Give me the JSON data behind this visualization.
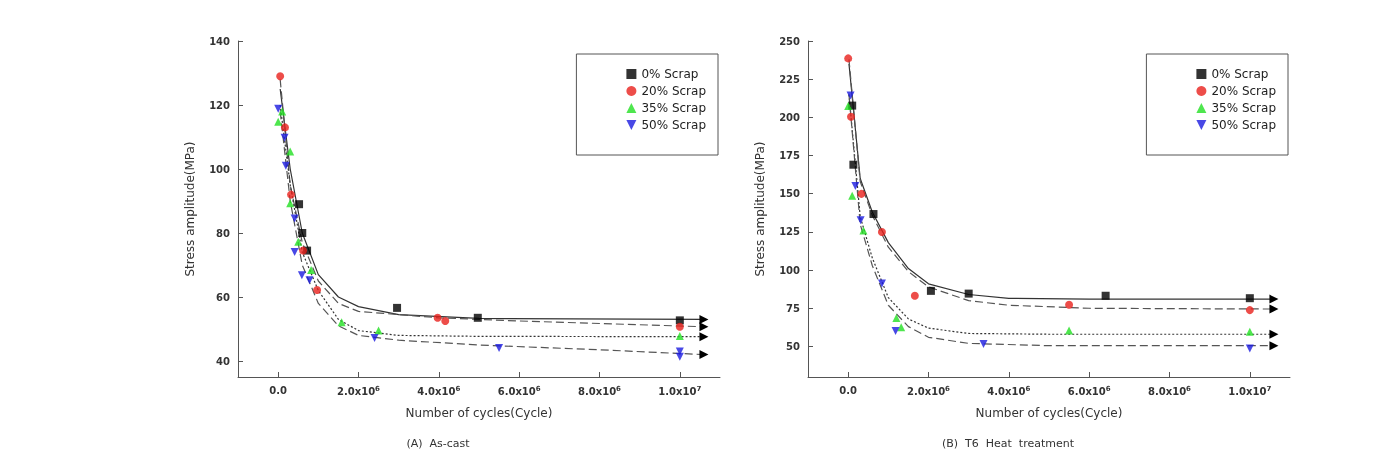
{
  "chart_data": [
    {
      "type": "scatter",
      "xlabel": "Number of cycles(Cycle)",
      "ylabel": "Stress amplitude(MPa)",
      "annotations": [
        "(A)  As-cast"
      ],
      "xlim": [
        -1000000,
        11000000
      ],
      "ylim": [
        35,
        140
      ],
      "xticks": [
        {
          "value": 0,
          "label": "0.0"
        },
        {
          "value": 2000000,
          "label": "2.0x10$^{6}$"
        },
        {
          "value": 4000000,
          "label": "4.0x10$^{6}$"
        },
        {
          "value": 6000000,
          "label": "6.0x10$^{6}$"
        },
        {
          "value": 8000000,
          "label": "8.0x10$^{6}$"
        },
        {
          "value": 10000000,
          "label": "1.0x10$^{7}$"
        }
      ],
      "yticks": [
        40,
        60,
        80,
        100,
        120,
        140
      ],
      "grid": false,
      "legend": "top right",
      "series": [
        {
          "name": "0% Scrap",
          "color": "#000000",
          "marker": "square",
          "x": [
            520000,
            600000,
            720000,
            2960000,
            4970000,
            10000000
          ],
          "values": [
            89,
            80,
            74.5,
            56.6,
            53.5,
            52.7
          ]
        },
        {
          "name": "20% Scrap",
          "color": "#e8201c",
          "marker": "circle",
          "x": [
            50000,
            170000,
            320000,
            620000,
            970000,
            3970000,
            4160000,
            10000000
          ],
          "values": [
            129,
            113,
            92,
            74.5,
            62.2,
            53.5,
            52.5,
            50.7
          ]
        },
        {
          "name": "35% Scrap",
          "color": "#22e022",
          "marker": "triangle",
          "x": [
            0,
            100000,
            300000,
            300000,
            500000,
            820000,
            1580000,
            2500000,
            10000000
          ],
          "values": [
            114.8,
            118,
            105.5,
            89.3,
            77.3,
            68.4,
            52.1,
            49.5,
            47.8
          ]
        },
        {
          "name": "50% Scrap",
          "color": "#1a1ae0",
          "marker": "triangle-down",
          "x": [
            0,
            160000,
            190000,
            410000,
            410000,
            590000,
            780000,
            2400000,
            5500000,
            10000000,
            10000000
          ],
          "values": [
            118.8,
            109.8,
            101,
            84.5,
            74.1,
            66.8,
            65.2,
            47.2,
            44.1,
            43,
            41.3
          ]
        },
        {
          "type": "line",
          "color": "#333333",
          "line_style": "solid",
          "marker": "none",
          "x": [
            50000,
            300000,
            600000,
            1000000,
            1500000,
            2000000,
            3000000,
            5000000,
            10600000
          ],
          "values": [
            125,
            100,
            80,
            67,
            60,
            57,
            54.5,
            53.3,
            53
          ]
        },
        {
          "type": "line",
          "color": "#555555",
          "line_style": "dashed",
          "marker": "none",
          "x": [
            50000,
            300000,
            600000,
            1000000,
            1500000,
            2000000,
            3000000,
            4000000,
            6000000,
            10600000
          ],
          "values": [
            128,
            95,
            77,
            65,
            58,
            55.5,
            54.5,
            53.5,
            52.5,
            50.7
          ]
        },
        {
          "type": "line",
          "color": "#333333",
          "line_style": "dotted",
          "marker": "none",
          "x": [
            50000,
            300000,
            600000,
            1000000,
            1500000,
            2000000,
            3000000,
            5000000,
            10600000
          ],
          "values": [
            120,
            95,
            74,
            62,
            53,
            49.5,
            48,
            47.7,
            47.6
          ]
        },
        {
          "type": "line",
          "color": "#555555",
          "line_style": "dashed",
          "marker": "none",
          "x": [
            50000,
            300000,
            600000,
            1000000,
            1500000,
            2000000,
            3000000,
            5000000,
            8000000,
            10600000
          ],
          "values": [
            118,
            90,
            70,
            58,
            51,
            48,
            46.5,
            45,
            43.5,
            42
          ]
        }
      ]
    },
    {
      "type": "scatter",
      "xlabel": "Number of cycles(Cycle)",
      "ylabel": "Stress amplitude(MPa)",
      "annotations": [
        "(B)  T6  Heat  treatment"
      ],
      "xlim": [
        -1000000,
        11000000
      ],
      "ylim": [
        30,
        250
      ],
      "xticks": [
        {
          "value": 0,
          "label": "0.0"
        },
        {
          "value": 2000000,
          "label": "2.0x10$^{6}$"
        },
        {
          "value": 4000000,
          "label": "4.0x10$^{6}$"
        },
        {
          "value": 6000000,
          "label": "6.0x10$^{6}$"
        },
        {
          "value": 8000000,
          "label": "8.0x10$^{6}$"
        },
        {
          "value": 10000000,
          "label": "1.0x10$^{7}$"
        }
      ],
      "yticks": [
        50,
        75,
        100,
        125,
        150,
        175,
        200,
        225,
        250
      ],
      "grid": false,
      "legend": "top right",
      "series": [
        {
          "name": "0% Scrap",
          "color": "#000000",
          "marker": "square",
          "x": [
            100000,
            130000,
            630000,
            2060000,
            3000000,
            6410000,
            10000000
          ],
          "values": [
            207.7,
            169,
            136.7,
            86.4,
            84.6,
            83.2,
            81.6
          ]
        },
        {
          "name": "20% Scrap",
          "color": "#e8201c",
          "marker": "circle",
          "x": [
            0,
            70000,
            330000,
            840000,
            1660000,
            5500000,
            10000000
          ],
          "values": [
            238.6,
            200.4,
            149.9,
            124.9,
            83.2,
            77.3,
            73.8
          ]
        },
        {
          "name": "35% Scrap",
          "color": "#22e022",
          "marker": "triangle",
          "x": [
            0,
            100000,
            380000,
            1200000,
            1320000,
            5500000,
            10000000
          ],
          "values": [
            207.5,
            148.7,
            126,
            68.7,
            62.5,
            60.5,
            59.6
          ]
        },
        {
          "name": "50% Scrap",
          "color": "#1a1ae0",
          "marker": "triangle-down",
          "x": [
            60000,
            180000,
            310000,
            840000,
            1180000,
            3370000,
            10000000
          ],
          "values": [
            214.3,
            155,
            132.6,
            91.2,
            60.2,
            51.6,
            48.7
          ]
        },
        {
          "type": "line",
          "color": "#333333",
          "line_style": "solid",
          "marker": "none",
          "x": [
            20000,
            300000,
            600000,
            1000000,
            1500000,
            2000000,
            3000000,
            4000000,
            6000000,
            10600000
          ],
          "values": [
            235,
            160,
            138,
            118,
            101,
            91,
            84,
            81.5,
            81,
            81
          ]
        },
        {
          "type": "line",
          "color": "#555555",
          "line_style": "dashed",
          "marker": "none",
          "x": [
            20000,
            300000,
            600000,
            1000000,
            1500000,
            2000000,
            3000000,
            4000000,
            6000000,
            10600000
          ],
          "values": [
            238,
            158,
            136,
            115,
            99,
            89,
            80,
            77,
            75,
            74.5
          ]
        },
        {
          "type": "line",
          "color": "#333333",
          "line_style": "dotted",
          "marker": "none",
          "x": [
            20000,
            300000,
            600000,
            1000000,
            1500000,
            2000000,
            3000000,
            5000000,
            10600000
          ],
          "values": [
            215,
            135,
            108,
            82,
            68,
            62,
            58.5,
            58,
            58
          ]
        },
        {
          "type": "line",
          "color": "#555555",
          "line_style": "dashed",
          "marker": "none",
          "x": [
            20000,
            300000,
            600000,
            1000000,
            1500000,
            2000000,
            3000000,
            5000000,
            10600000
          ],
          "values": [
            215,
            130,
            103,
            77,
            63,
            56,
            52,
            50.5,
            50.5
          ]
        }
      ]
    }
  ]
}
